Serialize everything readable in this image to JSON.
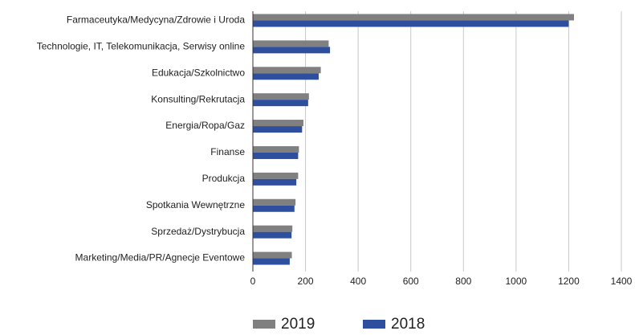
{
  "chart_data": {
    "type": "hbar",
    "categories": [
      "Farmaceutyka/Medycyna/Zdrowie i Uroda",
      "Technologie, IT, Telekomunikacja, Serwisy online",
      "Edukacja/Szkolnictwo",
      "Konsulting/Rekrutacja",
      "Energia/Ropa/Gaz",
      "Finanse",
      "Produkcja",
      "Spotkania Wewnętrzne",
      "Sprzedaż/Dystrybucja",
      "Marketing/Media/PR/Agnecje Eventowe"
    ],
    "series": [
      {
        "name": "2019",
        "color": "#808080",
        "values": [
          1220,
          288,
          258,
          213,
          192,
          175,
          172,
          162,
          150,
          148
        ]
      },
      {
        "name": "2018",
        "color": "#2e4f9e",
        "values": [
          1200,
          293,
          250,
          210,
          187,
          172,
          165,
          158,
          147,
          140
        ]
      }
    ],
    "xlim": [
      0,
      1400
    ],
    "xticks": [
      0,
      200,
      400,
      600,
      800,
      1000,
      1200,
      1400
    ],
    "grid": true,
    "legend": "bottom"
  }
}
